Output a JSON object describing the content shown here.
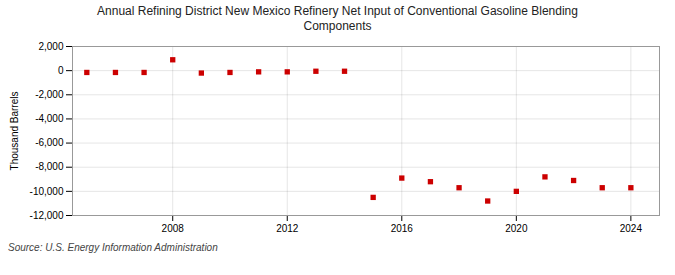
{
  "chart_data": {
    "type": "scatter",
    "title": "Annual Refining District New Mexico Refinery Net Input of Conventional Gasoline Blending\nComponents",
    "ylabel": "Thousand Barrels",
    "x": [
      2005,
      2006,
      2007,
      2008,
      2009,
      2010,
      2011,
      2012,
      2013,
      2014,
      2015,
      2016,
      2017,
      2018,
      2019,
      2020,
      2021,
      2022,
      2023,
      2024
    ],
    "values": [
      -150,
      -150,
      -150,
      900,
      -200,
      -150,
      -100,
      -100,
      -50,
      -50,
      -10500,
      -8900,
      -9200,
      -9700,
      -10800,
      -10000,
      -8800,
      -9100,
      -9700,
      -9700
    ],
    "color": "#cc0000",
    "marker": "square",
    "xlim": [
      2004.5,
      2025
    ],
    "xticks": [
      2008,
      2012,
      2016,
      2020,
      2024
    ],
    "ylim": [
      -12000,
      2000
    ],
    "yticks": [
      {
        "value": 2000,
        "label": "2,000"
      },
      0,
      {
        "value": -2000,
        "label": "-2,000"
      },
      {
        "value": -4000,
        "label": "-4,000"
      },
      {
        "value": -6000,
        "label": "-6,000"
      },
      {
        "value": -8000,
        "label": "-8,000"
      },
      {
        "value": -10000,
        "label": "-10,000"
      },
      {
        "value": -12000,
        "label": "-12,000"
      }
    ],
    "grid": true,
    "annotations": [
      "Source: U.S. Energy Information Administration"
    ]
  }
}
